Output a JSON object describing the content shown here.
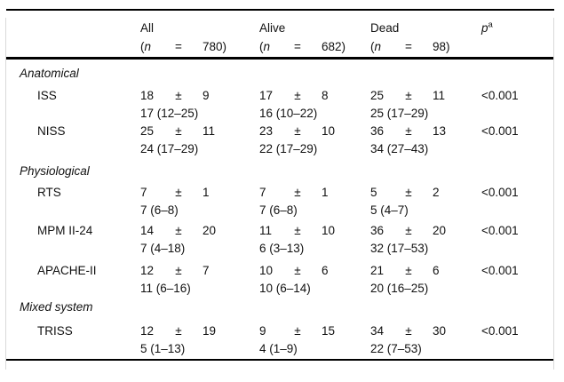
{
  "colors": {
    "text": "#111111",
    "rule": "#000000"
  },
  "header": {
    "columns": [
      {
        "name": "All",
        "open": "(",
        "n_sym": "n",
        "eq": "=",
        "n_close": "780)"
      },
      {
        "name": "Alive",
        "open": "(",
        "n_sym": "n",
        "eq": "=",
        "n_close": "682)"
      },
      {
        "name": "Dead",
        "open": "(",
        "n_sym": "n",
        "eq": "=",
        "n_close": "98)"
      }
    ],
    "p": {
      "symbol": "p",
      "sup": "a"
    }
  },
  "sections": [
    {
      "title": "Anatomical",
      "rows": [
        {
          "label": "ISS",
          "all": {
            "mean": "18",
            "pm": "±",
            "sd": "9",
            "median": "17 (12–25)"
          },
          "alive": {
            "mean": "17",
            "pm": "±",
            "sd": "8",
            "median": "16 (10–22)"
          },
          "dead": {
            "mean": "25",
            "pm": "±",
            "sd": "11",
            "median": "25 (17–29)"
          },
          "p": "<0.001"
        },
        {
          "label": "NISS",
          "all": {
            "mean": "25",
            "pm": "±",
            "sd": "11",
            "median": "24 (17–29)"
          },
          "alive": {
            "mean": "23",
            "pm": "±",
            "sd": "10",
            "median": "22 (17–29)"
          },
          "dead": {
            "mean": "36",
            "pm": "±",
            "sd": "13",
            "median": "34 (27–43)"
          },
          "p": "<0.001"
        }
      ]
    },
    {
      "title": "Physiological",
      "rows": [
        {
          "label": "RTS",
          "all": {
            "mean": "7",
            "pm": "±",
            "sd": "1",
            "median": "7 (6–8)"
          },
          "alive": {
            "mean": "7",
            "pm": "±",
            "sd": "1",
            "median": "7 (6–8)"
          },
          "dead": {
            "mean": "5",
            "pm": "±",
            "sd": "2",
            "median": "5 (4–7)"
          },
          "p": "<0.001"
        },
        {
          "label": "MPM II-24",
          "all": {
            "mean": "14",
            "pm": "±",
            "sd": "20",
            "median": "7 (4–18)"
          },
          "alive": {
            "mean": "11",
            "pm": "±",
            "sd": "10",
            "median": "6 (3–13)"
          },
          "dead": {
            "mean": "36",
            "pm": "±",
            "sd": "20",
            "median": "32 (17–53)"
          },
          "p": "<0.001"
        },
        {
          "label": "APACHE-II",
          "all": {
            "mean": "12",
            "pm": "±",
            "sd": "7",
            "median": "11 (6–16)"
          },
          "alive": {
            "mean": "10",
            "pm": "±",
            "sd": "6",
            "median": "10 (6–14)"
          },
          "dead": {
            "mean": "21",
            "pm": "±",
            "sd": "6",
            "median": "20 (16–25)"
          },
          "p": "<0.001"
        }
      ]
    },
    {
      "title": "Mixed system",
      "rows": [
        {
          "label": "TRISS",
          "all": {
            "mean": "12",
            "pm": "±",
            "sd": "19",
            "median": "5 (1–13)"
          },
          "alive": {
            "mean": "9",
            "pm": "±",
            "sd": "15",
            "median": "4 (1–9)"
          },
          "dead": {
            "mean": "34",
            "pm": "±",
            "sd": "30",
            "median": "22 (7–53)"
          },
          "p": "<0.001"
        }
      ]
    }
  ]
}
